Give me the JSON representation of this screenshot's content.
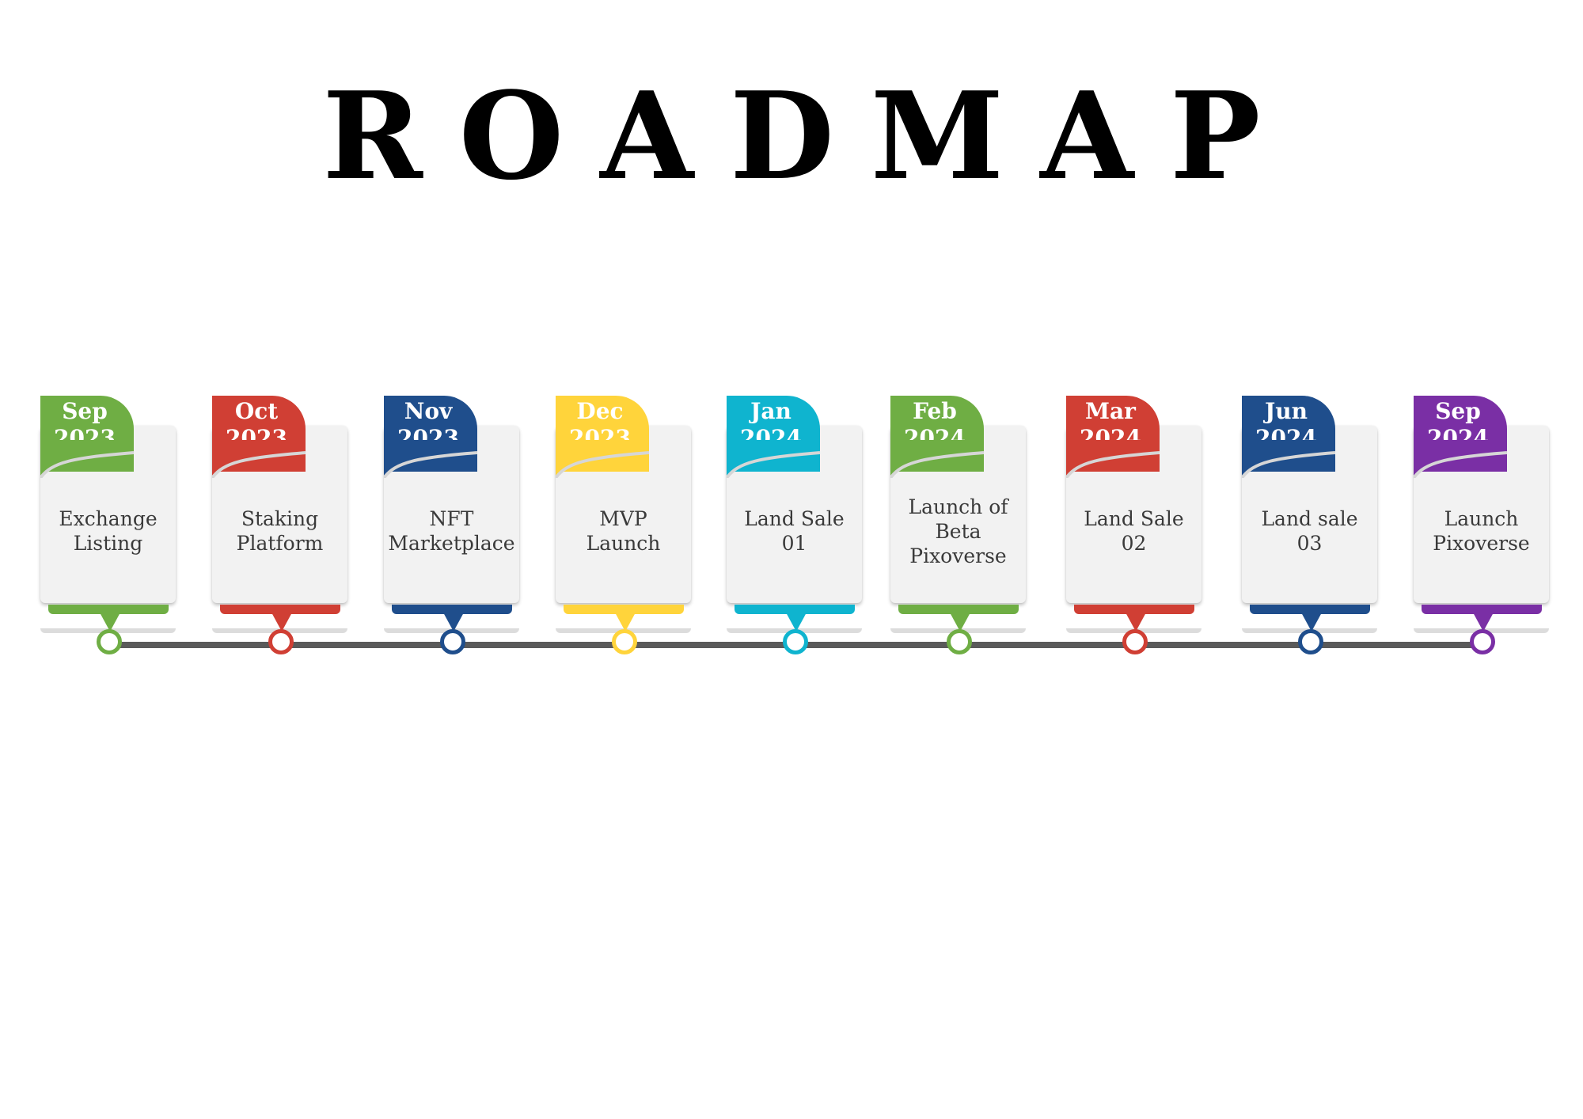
{
  "title": "ROADMAP",
  "milestones": [
    {
      "month": "Sep",
      "year": "2023",
      "label": "Exchange Listing",
      "color": "#6fae44"
    },
    {
      "month": "Oct",
      "year": "2023",
      "label": "Staking Platform",
      "color": "#d03f34"
    },
    {
      "month": "Nov",
      "year": "2023",
      "label": "NFT Marketplace",
      "color": "#1f4e8c"
    },
    {
      "month": "Dec",
      "year": "2023",
      "label": "MVP Launch",
      "color": "#ffd43b"
    },
    {
      "month": "Jan",
      "year": "2024",
      "label": "Land Sale 01",
      "color": "#0fb4cf"
    },
    {
      "month": "Feb",
      "year": "2024",
      "label": "Launch of Beta Pixoverse",
      "color": "#6fae44"
    },
    {
      "month": "Mar",
      "year": "2024",
      "label": "Land Sale 02",
      "color": "#d03f34"
    },
    {
      "month": "Jun",
      "year": "2024",
      "label": "Land sale 03",
      "color": "#1f4e8c"
    },
    {
      "month": "Sep",
      "year": "2024",
      "label": "Launch Pixoverse",
      "color": "#7a2fa5"
    }
  ]
}
